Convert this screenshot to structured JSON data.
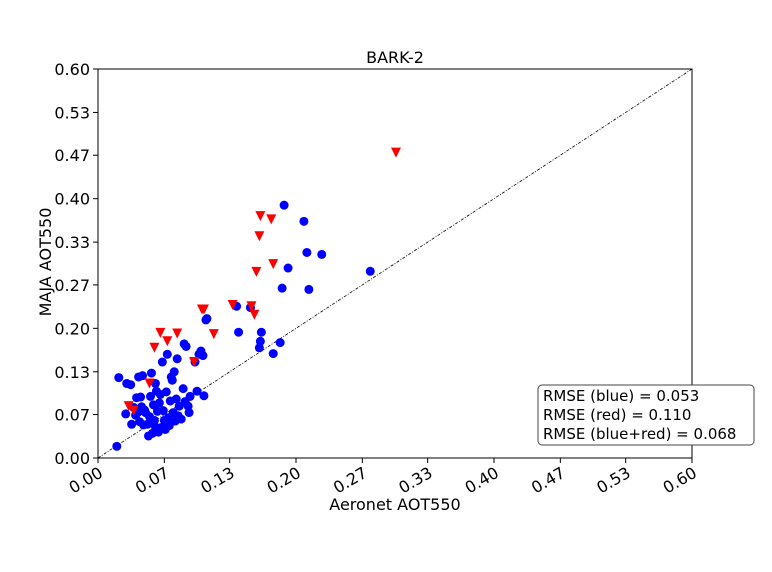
{
  "chart_data": {
    "type": "scatter",
    "title": "BARK-2",
    "xlabel": "Aeronet AOT550",
    "ylabel": "MAJA AOT550",
    "xlim": [
      0,
      0.6
    ],
    "ylim": [
      0,
      0.6
    ],
    "x_ticks": [
      0.0,
      0.067,
      0.133,
      0.2,
      0.267,
      0.333,
      0.4,
      0.467,
      0.533,
      0.6
    ],
    "x_tick_labels": [
      "0.00",
      "0.07",
      "0.13",
      "0.20",
      "0.27",
      "0.33",
      "0.40",
      "0.47",
      "0.53",
      "0.60"
    ],
    "y_ticks": [
      0.0,
      0.067,
      0.133,
      0.2,
      0.267,
      0.333,
      0.4,
      0.467,
      0.533,
      0.6
    ],
    "y_tick_labels": [
      "0.00",
      "0.07",
      "0.13",
      "0.20",
      "0.27",
      "0.33",
      "0.40",
      "0.47",
      "0.53",
      "0.60"
    ],
    "grid": false,
    "reference_line": "y=x",
    "legend_position": "bottom-right",
    "annotations": [
      "RMSE (blue) = 0.053",
      "RMSE (red) = 0.110",
      "RMSE (blue+red) = 0.068"
    ],
    "series": [
      {
        "color": "#0000ff",
        "marker": "circle",
        "points": [
          [
            0.019,
            0.018
          ],
          [
            0.021,
            0.124
          ],
          [
            0.028,
            0.068
          ],
          [
            0.029,
            0.115
          ],
          [
            0.033,
            0.113
          ],
          [
            0.034,
            0.052
          ],
          [
            0.036,
            0.078
          ],
          [
            0.038,
            0.066
          ],
          [
            0.039,
            0.093
          ],
          [
            0.04,
            0.07
          ],
          [
            0.041,
            0.125
          ],
          [
            0.042,
            0.056
          ],
          [
            0.043,
            0.094
          ],
          [
            0.044,
            0.079
          ],
          [
            0.045,
            0.127
          ],
          [
            0.046,
            0.051
          ],
          [
            0.047,
            0.074
          ],
          [
            0.048,
            0.07
          ],
          [
            0.05,
            0.052
          ],
          [
            0.051,
            0.034
          ],
          [
            0.052,
            0.064
          ],
          [
            0.053,
            0.095
          ],
          [
            0.054,
            0.131
          ],
          [
            0.055,
            0.038
          ],
          [
            0.056,
            0.082
          ],
          [
            0.057,
            0.058
          ],
          [
            0.058,
            0.115
          ],
          [
            0.058,
            0.048
          ],
          [
            0.059,
            0.103
          ],
          [
            0.06,
            0.072
          ],
          [
            0.061,
            0.04
          ],
          [
            0.062,
            0.085
          ],
          [
            0.063,
            0.098
          ],
          [
            0.064,
            0.047
          ],
          [
            0.065,
            0.148
          ],
          [
            0.066,
            0.073
          ],
          [
            0.067,
            0.058
          ],
          [
            0.068,
            0.044
          ],
          [
            0.069,
            0.102
          ],
          [
            0.07,
            0.16
          ],
          [
            0.071,
            0.062
          ],
          [
            0.072,
            0.05
          ],
          [
            0.073,
            0.088
          ],
          [
            0.074,
            0.125
          ],
          [
            0.075,
            0.12
          ],
          [
            0.076,
            0.07
          ],
          [
            0.077,
            0.133
          ],
          [
            0.078,
            0.057
          ],
          [
            0.079,
            0.091
          ],
          [
            0.08,
            0.153
          ],
          [
            0.081,
            0.065
          ],
          [
            0.082,
            0.08
          ],
          [
            0.084,
            0.06
          ],
          [
            0.086,
            0.107
          ],
          [
            0.087,
            0.176
          ],
          [
            0.088,
            0.087
          ],
          [
            0.089,
            0.172
          ],
          [
            0.091,
            0.08
          ],
          [
            0.092,
            0.07
          ],
          [
            0.093,
            0.095
          ],
          [
            0.098,
            0.148
          ],
          [
            0.1,
            0.103
          ],
          [
            0.102,
            0.16
          ],
          [
            0.104,
            0.165
          ],
          [
            0.106,
            0.158
          ],
          [
            0.107,
            0.096
          ],
          [
            0.109,
            0.213
          ],
          [
            0.11,
            0.215
          ],
          [
            0.14,
            0.234
          ],
          [
            0.142,
            0.194
          ],
          [
            0.154,
            0.232
          ],
          [
            0.163,
            0.17
          ],
          [
            0.164,
            0.18
          ],
          [
            0.165,
            0.194
          ],
          [
            0.177,
            0.161
          ],
          [
            0.184,
            0.178
          ],
          [
            0.186,
            0.262
          ],
          [
            0.188,
            0.39
          ],
          [
            0.192,
            0.293
          ],
          [
            0.208,
            0.365
          ],
          [
            0.211,
            0.317
          ],
          [
            0.213,
            0.26
          ],
          [
            0.226,
            0.314
          ],
          [
            0.275,
            0.288
          ]
        ]
      },
      {
        "color": "#ff0000",
        "marker": "triangle-down",
        "points": [
          [
            0.031,
            0.08
          ],
          [
            0.036,
            0.073
          ],
          [
            0.052,
            0.115
          ],
          [
            0.057,
            0.17
          ],
          [
            0.063,
            0.193
          ],
          [
            0.07,
            0.18
          ],
          [
            0.08,
            0.192
          ],
          [
            0.097,
            0.148
          ],
          [
            0.105,
            0.229
          ],
          [
            0.107,
            0.229
          ],
          [
            0.117,
            0.191
          ],
          [
            0.136,
            0.236
          ],
          [
            0.155,
            0.234
          ],
          [
            0.158,
            0.221
          ],
          [
            0.16,
            0.287
          ],
          [
            0.163,
            0.342
          ],
          [
            0.164,
            0.373
          ],
          [
            0.175,
            0.368
          ],
          [
            0.177,
            0.299
          ],
          [
            0.301,
            0.471
          ]
        ]
      }
    ]
  }
}
